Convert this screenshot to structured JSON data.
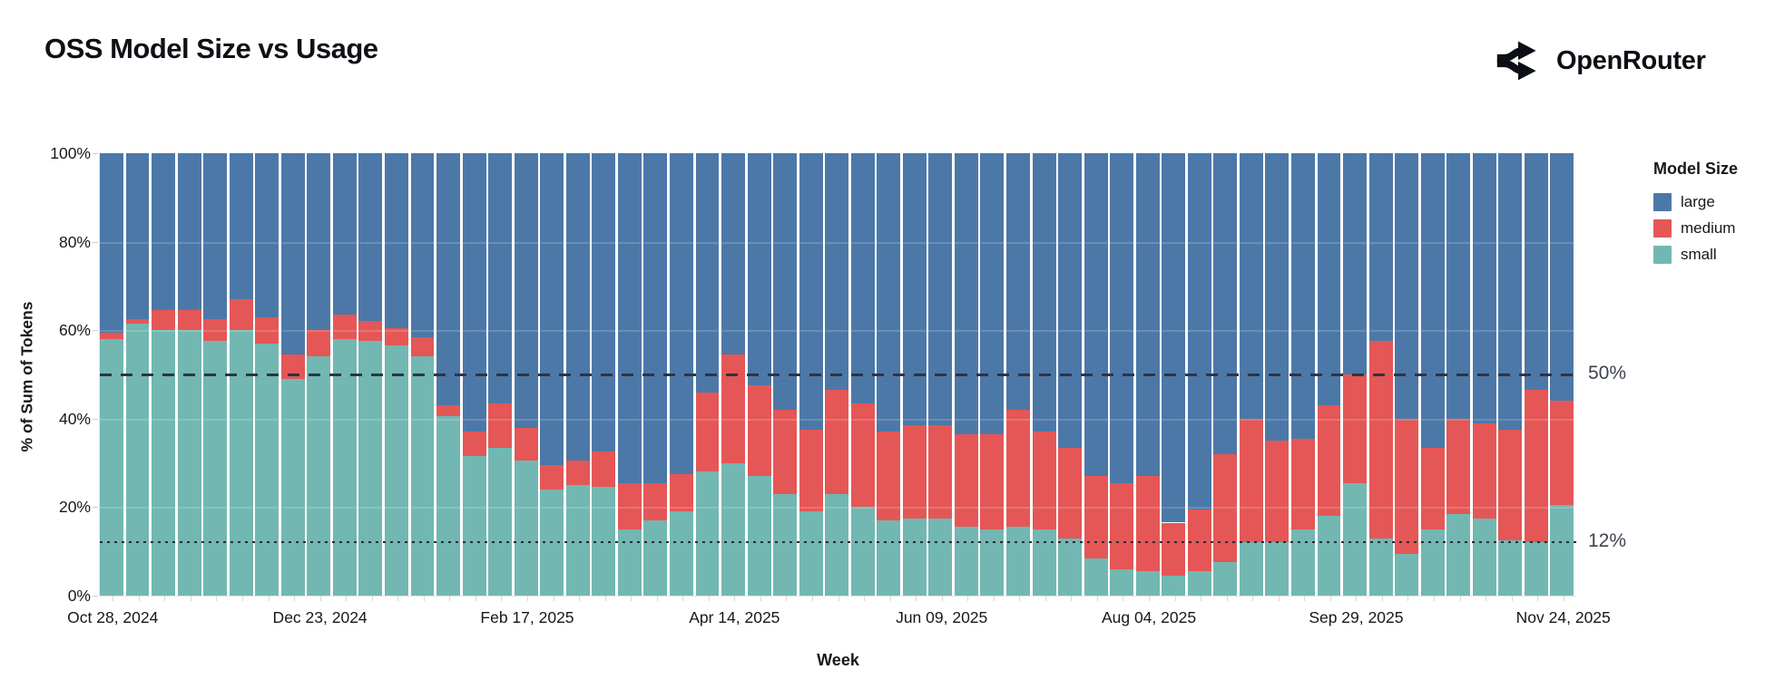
{
  "page": {
    "title": "OSS Model Size vs Usage",
    "brand": "OpenRouter"
  },
  "chart_data": {
    "type": "bar",
    "stacked": true,
    "title": "OSS Model Size vs Usage",
    "xlabel": "Week",
    "ylabel": "% of Sum of Tokens",
    "ylim": [
      0,
      100
    ],
    "grid": true,
    "grid_values": [
      20,
      40,
      60,
      80
    ],
    "y_ticks": [
      {
        "value": 0,
        "label": "0%"
      },
      {
        "value": 20,
        "label": "20%"
      },
      {
        "value": 40,
        "label": "40%"
      },
      {
        "value": 60,
        "label": "60%"
      },
      {
        "value": 80,
        "label": "80%"
      },
      {
        "value": 100,
        "label": "100%"
      }
    ],
    "x_tick_labels": [
      {
        "bar_index": 0,
        "label": "Oct 28, 2024"
      },
      {
        "bar_index": 8,
        "label": "Dec 23, 2024"
      },
      {
        "bar_index": 16,
        "label": "Feb 17, 2025"
      },
      {
        "bar_index": 24,
        "label": "Apr 14, 2025"
      },
      {
        "bar_index": 32,
        "label": "Jun 09, 2025"
      },
      {
        "bar_index": 40,
        "label": "Aug 04, 2025"
      },
      {
        "bar_index": 48,
        "label": "Sep 29, 2025"
      },
      {
        "bar_index": 56,
        "label": "Nov 24, 2025"
      }
    ],
    "reference_lines": [
      {
        "value": 50,
        "label": "50%",
        "style": "dashed"
      },
      {
        "value": 12,
        "label": "12%",
        "style": "dotted"
      }
    ],
    "legend": {
      "title": "Model Size",
      "position": "right",
      "entries": [
        {
          "label": "large",
          "color": "#4c78a8"
        },
        {
          "label": "medium",
          "color": "#e45756"
        },
        {
          "label": "small",
          "color": "#72b7b2"
        }
      ]
    },
    "stack_order_bottom_to_top": [
      "small",
      "medium",
      "large"
    ],
    "series": [
      {
        "name": "small",
        "color": "#72b7b2",
        "values": [
          58,
          61.5,
          60,
          60,
          57.5,
          60,
          57,
          49,
          54,
          58,
          57.5,
          56.5,
          54,
          40.5,
          31.5,
          33.5,
          30.5,
          24,
          25,
          24.5,
          15,
          17,
          19,
          28,
          30,
          27,
          23,
          19,
          23,
          20,
          17,
          17.5,
          17.5,
          15.5,
          15,
          15.5,
          15,
          13,
          8.5,
          6,
          5.5,
          4.5,
          5.5,
          7.5,
          12,
          12,
          15,
          18,
          25.5,
          13,
          9.5,
          15,
          18.5,
          17.5,
          12.5,
          12,
          20.5
        ]
      },
      {
        "name": "medium",
        "color": "#e45756",
        "values": [
          1.5,
          1,
          4.5,
          4.5,
          5,
          7,
          6,
          5.5,
          6,
          5.5,
          4.5,
          4,
          4.5,
          2.5,
          5.5,
          10,
          7.5,
          5.5,
          5.5,
          8,
          10.5,
          8.5,
          8.5,
          18,
          24.5,
          20.5,
          19,
          18.5,
          23.5,
          23.5,
          20,
          21,
          21,
          21,
          21.5,
          26.5,
          22,
          20.5,
          18.5,
          19.5,
          21.5,
          12,
          14,
          24.5,
          28,
          23,
          20.5,
          25,
          24.5,
          44.5,
          30.5,
          18.5,
          21.5,
          21.5,
          25,
          34.5,
          23.5
        ]
      },
      {
        "name": "large",
        "color": "#4c78a8",
        "values": [
          40.5,
          37.5,
          35.5,
          35.5,
          37.5,
          33,
          37,
          45.5,
          40,
          36.5,
          38,
          39.5,
          41.5,
          57,
          63,
          56.5,
          62,
          70.5,
          69.5,
          67.5,
          74.5,
          74.5,
          72.5,
          54,
          45.5,
          52.5,
          58,
          62.5,
          53.5,
          56.5,
          63,
          61.5,
          61.5,
          63.5,
          63.5,
          58,
          63,
          66.5,
          73,
          74.5,
          73,
          83.5,
          80.5,
          68,
          60,
          65,
          64.5,
          57,
          50,
          42.5,
          60,
          66.5,
          60,
          61,
          62.5,
          53.5,
          56
        ]
      }
    ]
  }
}
